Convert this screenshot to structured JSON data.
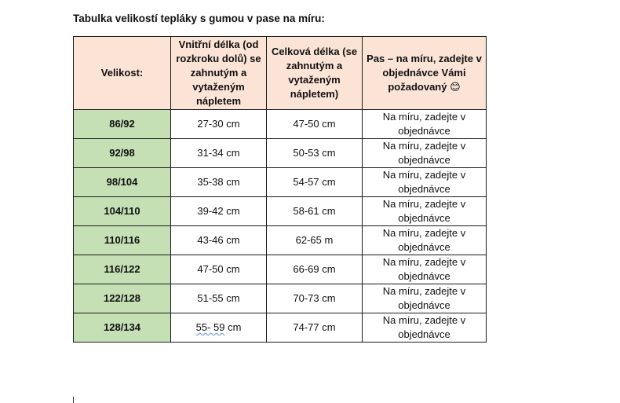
{
  "document": {
    "title": "Tabulka velikostí tepláky s gumou v pase na míru:"
  },
  "table": {
    "headers": {
      "size": "Velikost:",
      "inner_length": "Vnitřní délka (od rozkroku dolů) se zahnutým a vytaženým nápletem",
      "total_length": "Celková délka (se zahnutým a vytaženým nápletem)",
      "waist": "Pas – na míru, zadejte v objednávce Vámi požadovaný 😊"
    },
    "rows": [
      {
        "size": "86/92",
        "inner": "27-30 cm",
        "total": "47-50 cm",
        "waist": "Na míru, zadejte v objednávce"
      },
      {
        "size": "92/98",
        "inner": "31-34 cm",
        "total": "50-53 cm",
        "waist": "Na míru, zadejte v objednávce"
      },
      {
        "size": "98/104",
        "inner": "35-38 cm",
        "total": "54-57 cm",
        "waist": "Na míru, zadejte v objednávce"
      },
      {
        "size": "104/110",
        "inner": "39-42 cm",
        "total": "58-61 cm",
        "waist": "Na míru, zadejte v objednávce"
      },
      {
        "size": "110/116",
        "inner": "43-46 cm",
        "total": "62-65 m",
        "waist": "Na míru, zadejte v objednávce"
      },
      {
        "size": "116/122",
        "inner": "47-50 cm",
        "total": "66-69 cm",
        "waist": "Na míru, zadejte v objednávce"
      },
      {
        "size": "122/128",
        "inner": "51-55 cm",
        "total": "70-73 cm",
        "waist": "Na míru, zadejte v objednávce"
      },
      {
        "size": "128/134",
        "inner_marked": "55- 59",
        "inner_unit": " cm",
        "total": "74-77 cm",
        "waist": "Na míru, zadejte v objednávce"
      }
    ]
  },
  "colors": {
    "header_bg": "#fbe4d5",
    "size_col_bg": "#c5e0b4",
    "spellcheck_underline": "#5b8fd6"
  }
}
